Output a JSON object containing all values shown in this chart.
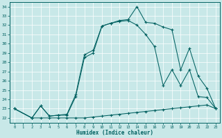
{
  "xlabel": "Humidex (Indice chaleur)",
  "bg_color": "#c8e8e8",
  "line_color": "#006060",
  "xlim": [
    -0.5,
    23.5
  ],
  "ylim": [
    21.5,
    34.5
  ],
  "xticks": [
    0,
    1,
    2,
    3,
    4,
    5,
    6,
    7,
    8,
    9,
    10,
    11,
    12,
    13,
    14,
    15,
    16,
    17,
    18,
    19,
    20,
    21,
    22,
    23
  ],
  "yticks": [
    22,
    23,
    24,
    25,
    26,
    27,
    28,
    29,
    30,
    31,
    32,
    33,
    34
  ],
  "line1_x": [
    0,
    2,
    3,
    4,
    5,
    6,
    7,
    8,
    9,
    10,
    11,
    12,
    13,
    14,
    15,
    16,
    17,
    18,
    19,
    20,
    21,
    22,
    23
  ],
  "line1_y": [
    23.0,
    22.0,
    22.0,
    22.0,
    22.0,
    22.0,
    22.0,
    22.0,
    22.1,
    22.2,
    22.3,
    22.4,
    22.5,
    22.6,
    22.7,
    22.8,
    22.9,
    23.0,
    23.1,
    23.2,
    23.3,
    23.4,
    23.0
  ],
  "line2_x": [
    0,
    2,
    3,
    4,
    5,
    6,
    7,
    8,
    9,
    10,
    11,
    12,
    13,
    14,
    15,
    16,
    17,
    18,
    19,
    20,
    21,
    22,
    23
  ],
  "line2_y": [
    23.0,
    22.0,
    23.3,
    22.2,
    22.3,
    22.3,
    24.3,
    28.5,
    29.0,
    31.9,
    32.2,
    32.4,
    32.5,
    32.0,
    31.0,
    29.7,
    25.5,
    27.2,
    25.5,
    27.2,
    24.3,
    24.2,
    23.0
  ],
  "line3_x": [
    0,
    2,
    3,
    4,
    5,
    6,
    7,
    8,
    9,
    10,
    11,
    12,
    13,
    14,
    15,
    16,
    17,
    18,
    19,
    20,
    21,
    22,
    23
  ],
  "line3_y": [
    23.0,
    22.0,
    23.3,
    22.2,
    22.3,
    22.4,
    24.5,
    28.8,
    29.3,
    31.9,
    32.2,
    32.5,
    32.6,
    34.0,
    32.3,
    32.2,
    31.8,
    31.5,
    27.2,
    29.5,
    26.5,
    25.2,
    23.0
  ]
}
